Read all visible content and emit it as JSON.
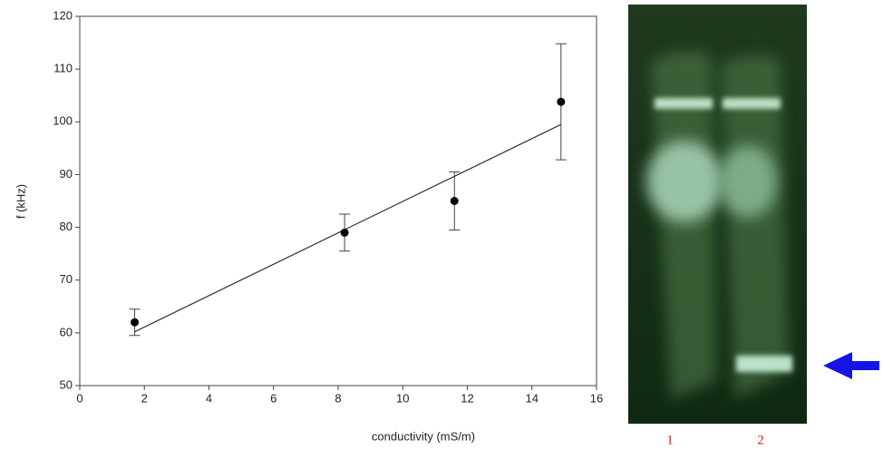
{
  "chart_data": {
    "type": "scatter",
    "xlabel": "conductivity (mS/m)",
    "ylabel": "f (kHz)",
    "x": [
      1.7,
      8.2,
      11.6,
      14.9
    ],
    "values": [
      62,
      79,
      85,
      103.8
    ],
    "errors": [
      2.5,
      3.5,
      5.5,
      11
    ],
    "color": "#000000",
    "fit": {
      "x": [
        1.7,
        14.9
      ],
      "values": [
        60.2,
        99.5
      ]
    },
    "xlim": [
      0,
      16
    ],
    "xticks": [
      0,
      2,
      4,
      6,
      8,
      10,
      12,
      14,
      16
    ],
    "ylim": [
      50,
      120
    ],
    "yticks": [
      50,
      60,
      70,
      80,
      90,
      100,
      110,
      120
    ],
    "lane_labels": [
      "1",
      "2"
    ]
  }
}
